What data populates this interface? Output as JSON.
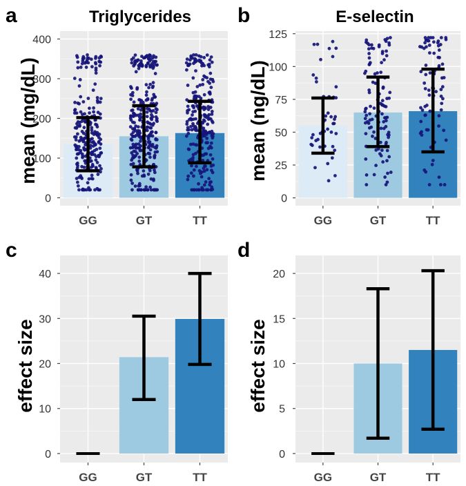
{
  "chart_data": [
    {
      "panel": "a",
      "type": "bar",
      "title": "Triglycerides",
      "ylabel": "mean (mg/dL)",
      "xlabel": "",
      "categories": [
        "GG",
        "GT",
        "TT"
      ],
      "values": [
        135,
        155,
        163
      ],
      "error_low": [
        68,
        78,
        88
      ],
      "error_high": [
        202,
        232,
        243
      ],
      "colors": [
        "#DDEBF7",
        "#9ECAE1",
        "#3182BD"
      ],
      "yticks": [
        0,
        100,
        200,
        300,
        400
      ],
      "ylim": [
        -20,
        420
      ],
      "grid": true,
      "jitter": {
        "spread": [
          20,
          360
        ],
        "counts": [
          240,
          320,
          260
        ]
      }
    },
    {
      "panel": "b",
      "type": "bar",
      "title": "E-selectin",
      "ylabel": "mean (ng/dL)",
      "xlabel": "",
      "categories": [
        "GG",
        "GT",
        "TT"
      ],
      "values": [
        55,
        65,
        66
      ],
      "error_low": [
        34,
        39,
        35
      ],
      "error_high": [
        76,
        92,
        98
      ],
      "colors": [
        "#DDEBF7",
        "#9ECAE1",
        "#3182BD"
      ],
      "yticks": [
        0,
        25,
        50,
        75,
        100,
        125
      ],
      "ylim": [
        -6,
        127
      ],
      "grid": true,
      "jitter": {
        "spread": [
          10,
          122
        ],
        "counts": [
          45,
          110,
          80
        ]
      }
    },
    {
      "panel": "c",
      "type": "bar",
      "title": "",
      "ylabel": "effect size",
      "xlabel": "",
      "categories": [
        "GG",
        "GT",
        "TT"
      ],
      "values": [
        0,
        21.4,
        29.9
      ],
      "error_low": [
        0,
        12,
        19.8
      ],
      "error_high": [
        0,
        30.5,
        40
      ],
      "colors": [
        "#DDEBF7",
        "#9ECAE1",
        "#3182BD"
      ],
      "yticks": [
        0,
        10,
        20,
        30,
        40
      ],
      "ylim": [
        -2,
        44
      ],
      "grid": true
    },
    {
      "panel": "d",
      "type": "bar",
      "title": "",
      "ylabel": "effect size",
      "xlabel": "",
      "categories": [
        "GG",
        "GT",
        "TT"
      ],
      "values": [
        0,
        10,
        11.5
      ],
      "error_low": [
        0,
        1.7,
        2.7
      ],
      "error_high": [
        0,
        18.3,
        20.3
      ],
      "colors": [
        "#DDEBF7",
        "#9ECAE1",
        "#3182BD"
      ],
      "yticks": [
        0,
        5,
        10,
        15,
        20
      ],
      "ylim": [
        -1,
        22
      ],
      "grid": true
    }
  ]
}
